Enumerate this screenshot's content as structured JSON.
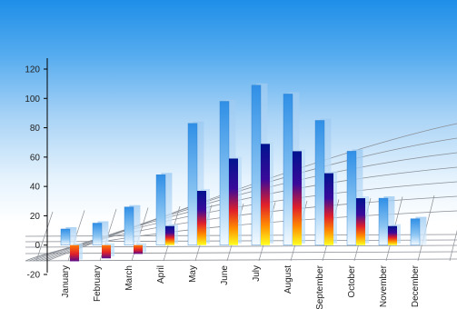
{
  "chart_data": {
    "type": "bar",
    "title": "",
    "xlabel": "",
    "ylabel": "",
    "ylim": [
      -20,
      120
    ],
    "yticks": [
      -20,
      0,
      20,
      40,
      60,
      80,
      100,
      120
    ],
    "categories": [
      "January",
      "February",
      "March",
      "April",
      "May",
      "June",
      "July",
      "August",
      "September",
      "October",
      "November",
      "December"
    ],
    "series": [
      {
        "values": [
          11,
          15,
          26,
          48,
          83,
          98,
          109,
          103,
          85,
          64,
          32,
          18
        ]
      },
      {
        "values": [
          -11,
          -9,
          -6,
          13,
          37,
          59,
          69,
          64,
          49,
          32,
          13,
          0
        ]
      }
    ],
    "grid": true,
    "style": "3d-perspective",
    "colors": {
      "series1": "#2f8fe6",
      "series2_top": "#001a9a",
      "series2_bottom": "#ffff00",
      "axis": "#000000"
    }
  }
}
